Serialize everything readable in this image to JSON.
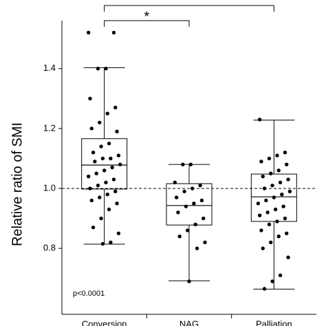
{
  "chart_data": {
    "type": "box",
    "y_label": "Relative ratio of SMI",
    "categories": [
      "Conversion",
      "NAG",
      "Palliation"
    ],
    "boxes": [
      {
        "whislo": 0.814,
        "q1": 0.998,
        "med": 1.078,
        "q3": 1.166,
        "whishi": 1.403,
        "points": [
          1.52,
          1.52,
          1.4,
          1.4,
          1.3,
          1.27,
          1.25,
          1.22,
          1.2,
          1.19,
          1.15,
          1.14,
          1.12,
          1.11,
          1.1,
          1.1,
          1.09,
          1.08,
          1.07,
          1.06,
          1.05,
          1.04,
          1.03,
          1.02,
          1.01,
          1.0,
          0.99,
          0.98,
          0.97,
          0.96,
          0.95,
          0.93,
          0.9,
          0.87,
          0.85,
          0.82,
          0.815
        ]
      },
      {
        "whislo": 0.692,
        "q1": 0.878,
        "med": 0.943,
        "q3": 1.016,
        "whishi": 1.08,
        "points": [
          1.08,
          1.08,
          1.02,
          1.01,
          1.0,
          0.99,
          0.97,
          0.96,
          0.95,
          0.94,
          0.92,
          0.9,
          0.88,
          0.86,
          0.84,
          0.82,
          0.8,
          0.69
        ]
      },
      {
        "whislo": 0.664,
        "q1": 0.89,
        "med": 0.972,
        "q3": 1.048,
        "whishi": 1.228,
        "points": [
          1.23,
          1.12,
          1.11,
          1.1,
          1.09,
          1.08,
          1.06,
          1.05,
          1.04,
          1.03,
          1.02,
          1.01,
          1.0,
          0.99,
          0.98,
          0.97,
          0.96,
          0.95,
          0.94,
          0.93,
          0.92,
          0.91,
          0.9,
          0.89,
          0.88,
          0.86,
          0.85,
          0.84,
          0.82,
          0.8,
          0.77,
          0.71,
          0.69,
          0.665
        ]
      }
    ],
    "reference_line": 1.0,
    "ylim": [
      0.58,
      1.56
    ],
    "yticks": [
      {
        "value": 0.8,
        "label": "0.8"
      },
      {
        "value": 1.0,
        "label": "1.0"
      },
      {
        "value": 1.2,
        "label": "1.2"
      },
      {
        "value": 1.4,
        "label": "1.4"
      }
    ],
    "annotation": "p<0.0001",
    "significance": [
      {
        "from": 0,
        "to": 1,
        "label": "*"
      },
      {
        "from": 0,
        "to": 2
      }
    ],
    "color": "#000000"
  }
}
